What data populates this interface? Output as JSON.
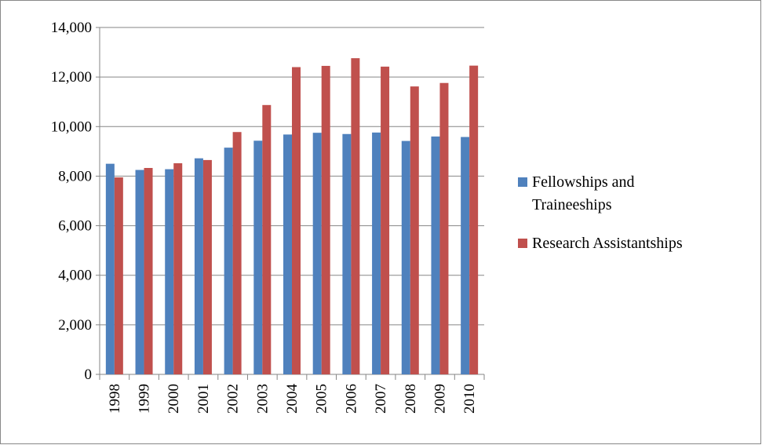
{
  "chart_data": {
    "type": "bar",
    "categories": [
      "1998",
      "1999",
      "2000",
      "2001",
      "2002",
      "2003",
      "2004",
      "2005",
      "2006",
      "2007",
      "2008",
      "2009",
      "2010"
    ],
    "series": [
      {
        "name": "Fellowships and Traineeships",
        "color": "#4f81bd",
        "values": [
          8500,
          8250,
          8280,
          8720,
          9150,
          9430,
          9680,
          9750,
          9700,
          9760,
          9420,
          9600,
          9580
        ]
      },
      {
        "name": "Research Assistantships",
        "color": "#c0504d",
        "values": [
          7950,
          8330,
          8520,
          8650,
          9780,
          10870,
          12400,
          12450,
          12760,
          12420,
          11620,
          11760,
          12460
        ]
      }
    ],
    "ylim": [
      0,
      14000
    ],
    "yticks": [
      0,
      {
        "value": 2000,
        "label": "2,000"
      },
      {
        "value": 4000,
        "label": "4,000"
      },
      {
        "value": 6000,
        "label": "6,000"
      },
      {
        "value": 8000,
        "label": "8,000"
      },
      {
        "value": 10000,
        "label": "10,000"
      },
      {
        "value": 12000,
        "label": "12,000"
      },
      {
        "value": 14000,
        "label": "14,000"
      }
    ],
    "grid": true,
    "legend": "right"
  }
}
